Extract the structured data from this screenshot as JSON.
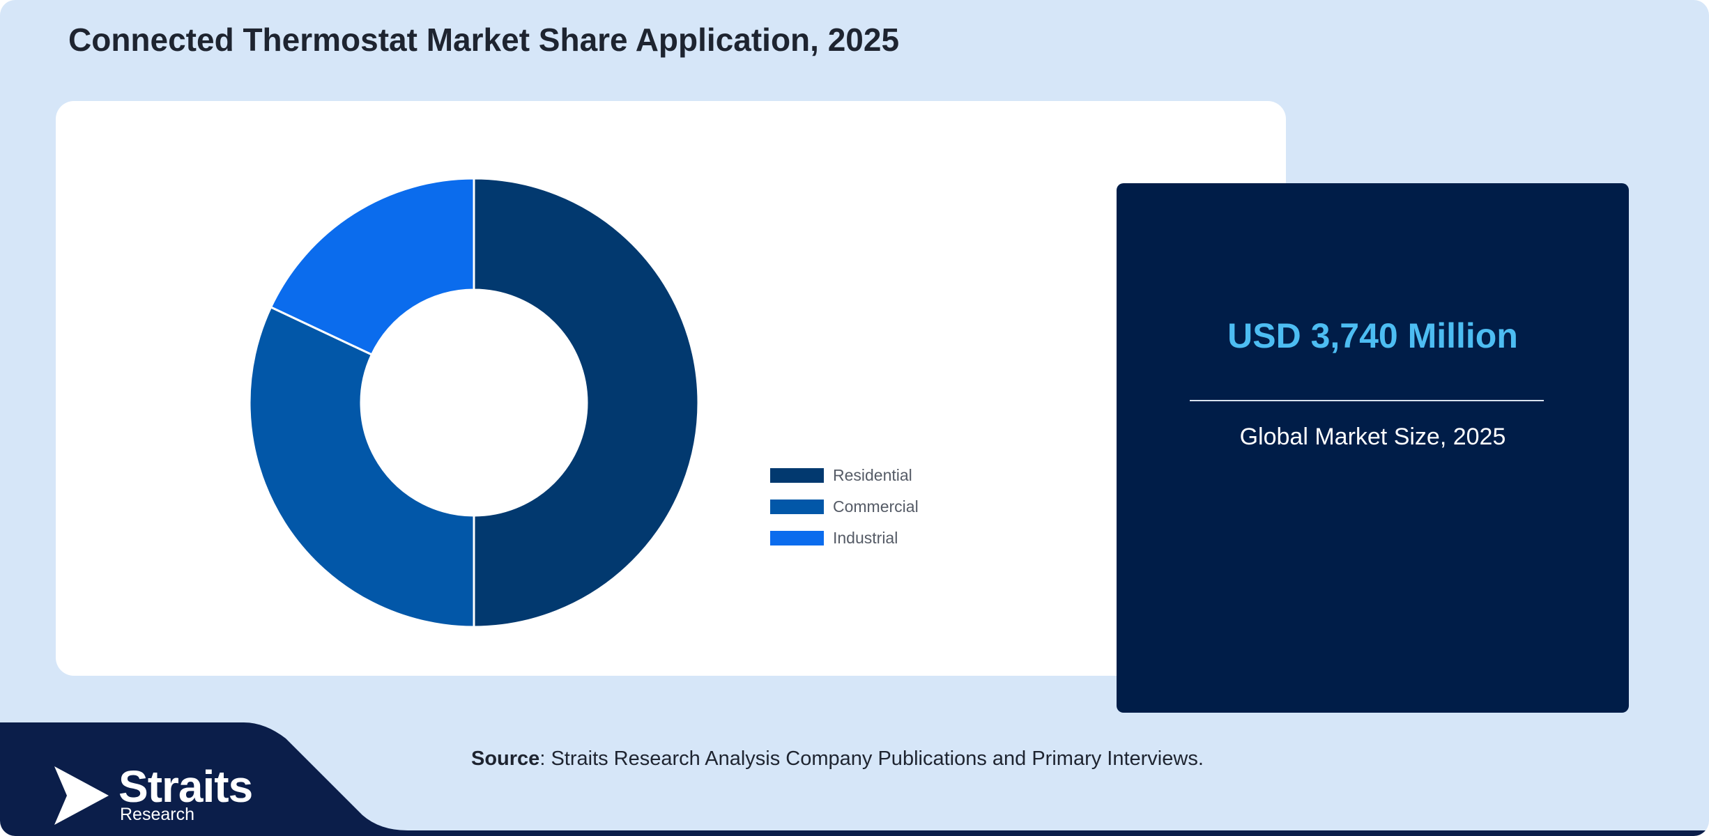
{
  "title": "Connected Thermostat Market Share Application, 2025",
  "chart_data": {
    "type": "pie",
    "subtype": "donut",
    "title": "Connected Thermostat Market Share Application, 2025",
    "categories": [
      "Residential",
      "Commercial",
      "Industrial"
    ],
    "values": [
      50,
      32,
      18
    ],
    "unit": "%",
    "colors": [
      "#02396f",
      "#0257a8",
      "#0b6ced"
    ],
    "legend_position": "right"
  },
  "stat": {
    "value": "USD 3,740 Million",
    "label": "Global Market Size, 2025"
  },
  "source": {
    "label": "Source",
    "text": ": Straits Research Analysis Company Publications and Primary Interviews."
  },
  "logo": {
    "name": "Straits",
    "sub": "Research"
  },
  "colors": {
    "background": "#d6e6f8",
    "card": "#ffffff",
    "stat_card": "#001d48",
    "stat_value": "#4dbdf2",
    "footer": "#0b1e4a"
  }
}
